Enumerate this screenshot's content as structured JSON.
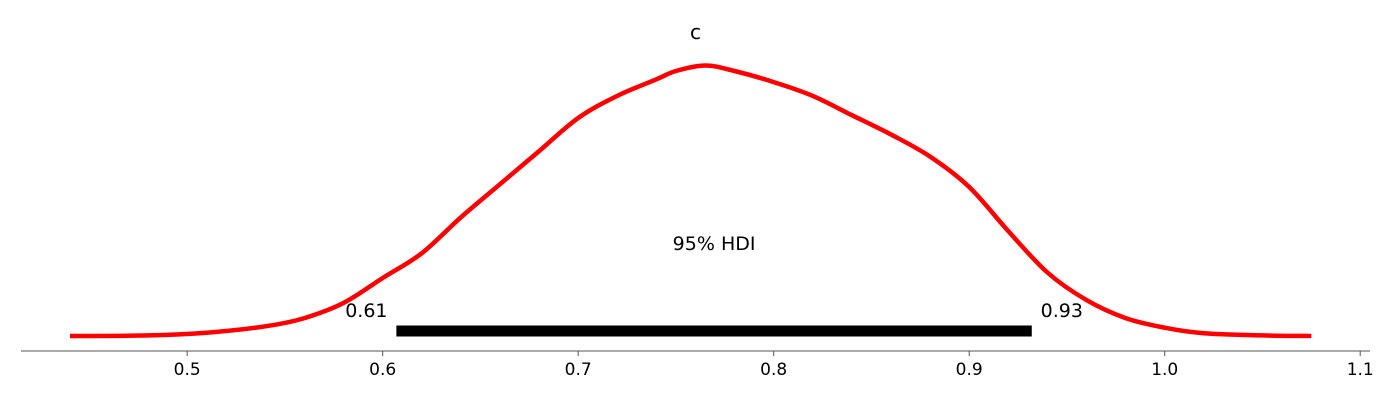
{
  "chart_data": {
    "type": "line",
    "title": "c",
    "xlabel": "",
    "ylabel": "",
    "xlim": [
      0.415,
      1.105
    ],
    "ylim": [
      0,
      1
    ],
    "grid": false,
    "x_ticks": [
      0.5,
      0.6,
      0.7,
      0.8,
      0.9,
      1.0,
      1.1
    ],
    "x_tick_labels": [
      "0.5",
      "0.6",
      "0.7",
      "0.8",
      "0.9",
      "1.0",
      "1.1"
    ],
    "line_color": "#ff0000",
    "series": [
      {
        "x": [
          0.44,
          0.48,
          0.51,
          0.54,
          0.56,
          0.58,
          0.6,
          0.62,
          0.64,
          0.66,
          0.68,
          0.7,
          0.72,
          0.74,
          0.75,
          0.765,
          0.78,
          0.8,
          0.82,
          0.84,
          0.86,
          0.88,
          0.9,
          0.92,
          0.94,
          0.96,
          0.98,
          1.0,
          1.02,
          1.05,
          1.075
        ],
        "y": [
          0.0,
          0.002,
          0.012,
          0.035,
          0.065,
          0.12,
          0.21,
          0.3,
          0.43,
          0.55,
          0.67,
          0.79,
          0.87,
          0.93,
          0.96,
          0.98,
          0.96,
          0.92,
          0.87,
          0.8,
          0.73,
          0.65,
          0.54,
          0.38,
          0.23,
          0.13,
          0.065,
          0.03,
          0.01,
          0.002,
          0.0
        ]
      }
    ],
    "hdi": {
      "label": "95% HDI",
      "lower": 0.607,
      "upper": 0.932,
      "lower_label": "0.61",
      "upper_label": "0.93",
      "color": "#000000"
    }
  }
}
